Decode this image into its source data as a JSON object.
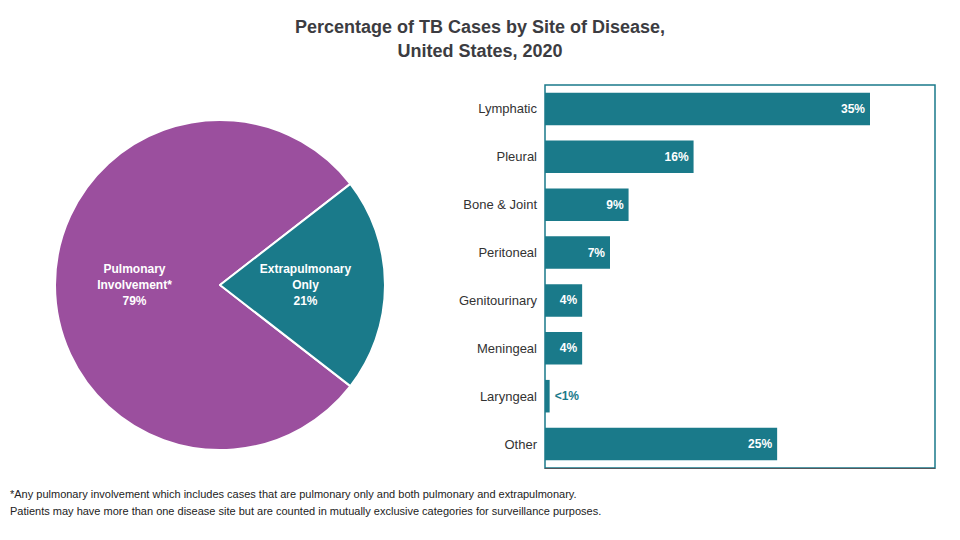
{
  "title": "Percentage of TB Cases by Site of Disease,\nUnited States, 2020",
  "annotations": [
    "*Any pulmonary involvement which includes cases that are pulmonary only and both pulmonary and extrapulmonary.",
    "Patients may have more than one disease site but are counted in mutually exclusive categories for surveillance purposes."
  ],
  "chart_data": [
    {
      "type": "pie",
      "categories": [
        "Pulmonary\nInvolvement*",
        "Extrapulmonary\nOnly"
      ],
      "values": [
        79,
        21
      ],
      "value_labels": [
        "79%",
        "21%"
      ],
      "colors": [
        "#9b4f9e",
        "#1a7a8a"
      ],
      "data_labels": true
    },
    {
      "type": "bar",
      "orientation": "horizontal",
      "categories": [
        "Lymphatic",
        "Pleural",
        "Bone & Joint",
        "Peritoneal",
        "Genitourinary",
        "Meningeal",
        "Laryngeal",
        "Other"
      ],
      "values": [
        35,
        16,
        9,
        7,
        4,
        4,
        0.5,
        25
      ],
      "value_labels": [
        "35%",
        "16%",
        "9%",
        "7%",
        "4%",
        "4%",
        "<1%",
        "25%"
      ],
      "color": "#1a7a8a",
      "xlim": [
        0,
        42
      ],
      "grid": false,
      "tick_labels": "y",
      "data_labels": true
    }
  ]
}
